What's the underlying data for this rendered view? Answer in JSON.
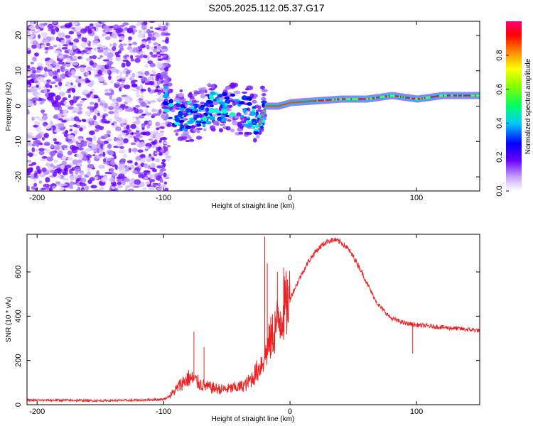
{
  "title": "S205.2025.112.05.37.G17",
  "chart_data": [
    {
      "type": "heatmap",
      "xlabel": "Height of straight line (km)",
      "ylabel": "Frequency (Hz)",
      "xlim": [
        -208,
        150
      ],
      "ylim": [
        -24,
        24
      ],
      "xticks": [
        -200,
        -100,
        0,
        100
      ],
      "yticks": [
        -20,
        -10,
        0,
        10,
        20
      ],
      "colorbar": {
        "label": "Normalized spectral amplitude",
        "range": [
          0,
          1
        ],
        "ticks": [
          "0.0",
          "0.2",
          "0.4",
          "0.6",
          "0.8"
        ]
      },
      "signal_trace": {
        "x": [
          -100,
          -90,
          -80,
          -70,
          -60,
          -50,
          -40,
          -30,
          -25,
          -20,
          -10,
          0,
          20,
          40,
          60,
          80,
          100,
          120,
          150
        ],
        "freq": [
          3,
          -2,
          -3,
          -2,
          0,
          0,
          -1,
          -2,
          -5,
          0,
          0,
          1,
          1.5,
          2,
          2,
          3,
          2,
          3,
          3
        ]
      },
      "noise_region": {
        "x_from": -208,
        "x_to": -96
      }
    },
    {
      "type": "line",
      "xlabel": "Height of straight line (km)",
      "ylabel": "SNR (10 * v/v)",
      "xlim": [
        -208,
        150
      ],
      "ylim": [
        0,
        770
      ],
      "xticks": [
        -200,
        -100,
        0,
        100
      ],
      "yticks": [
        0,
        200,
        400,
        600
      ],
      "color": "#ee2222",
      "x": [
        -208,
        -180,
        -150,
        -120,
        -100,
        -95,
        -90,
        -85,
        -80,
        -75,
        -70,
        -65,
        -60,
        -55,
        -50,
        -45,
        -40,
        -35,
        -30,
        -25,
        -20,
        -15,
        -10,
        -5,
        0,
        5,
        10,
        15,
        20,
        25,
        30,
        35,
        40,
        45,
        50,
        55,
        60,
        65,
        70,
        75,
        80,
        90,
        100,
        110,
        120,
        130,
        140,
        150
      ],
      "values": [
        20,
        20,
        18,
        20,
        25,
        40,
        70,
        100,
        120,
        110,
        90,
        80,
        75,
        70,
        70,
        75,
        80,
        90,
        120,
        160,
        220,
        300,
        370,
        430,
        480,
        540,
        600,
        650,
        690,
        720,
        740,
        745,
        735,
        710,
        670,
        620,
        560,
        500,
        450,
        420,
        390,
        370,
        360,
        355,
        350,
        345,
        340,
        335
      ],
      "spikes": [
        {
          "x": -76,
          "y": 330
        },
        {
          "x": -68,
          "y": 260
        },
        {
          "x": -20,
          "y": 760
        },
        {
          "x": -18,
          "y": 640
        },
        {
          "x": -10,
          "y": 600
        },
        {
          "x": -5,
          "y": 620
        },
        {
          "x": 97,
          "y": 230
        }
      ]
    }
  ]
}
